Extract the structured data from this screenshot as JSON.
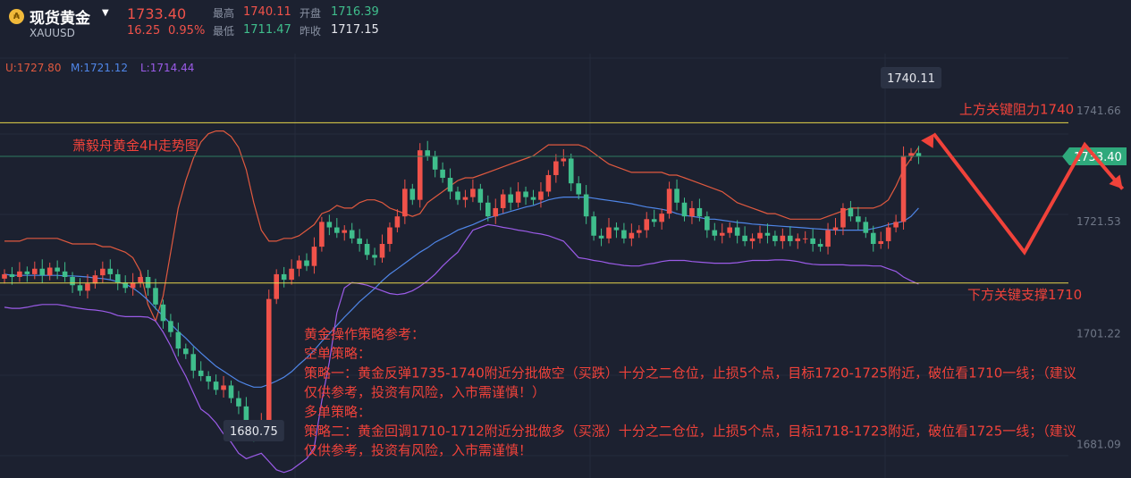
{
  "header": {
    "title": "现货黄金",
    "symbol": "XAUUSD",
    "price": "1733.40",
    "change": "16.25",
    "change_pct": "0.95%",
    "stats": {
      "high_label": "最高",
      "high": "1740.11",
      "open_label": "开盘",
      "open": "1716.39",
      "low_label": "最低",
      "low": "1711.47",
      "prev_close_label": "昨收",
      "prev_close": "1717.15"
    }
  },
  "bollinger": {
    "upper": "U:1727.80",
    "middle": "M:1721.12",
    "lower": "L:1714.44"
  },
  "colors": {
    "background": "#1c2130",
    "up": "#f0524a",
    "down": "#3fbe8c",
    "upper_band": "#e0593f",
    "middle_band": "#4f86e8",
    "lower_band": "#9b5be8",
    "level_line": "#e6d64a",
    "annotation": "#f0423a"
  },
  "chart_data": {
    "type": "candlestick",
    "title": "萧毅舟黄金4H走势图",
    "ylim": [
      1675,
      1748
    ],
    "y_ticks": [
      1741.66,
      1721.53,
      1701.22,
      1681.09
    ],
    "y_tick_labels": [
      "1741.66",
      "1721.53",
      "1701.22",
      "1681.09"
    ],
    "last_price_label": "1733.40",
    "extreme_labels": [
      {
        "text": "1740.11",
        "candle_index": 120
      },
      {
        "text": "1680.75",
        "candle_index": 33
      }
    ],
    "levels": [
      {
        "name": "上方关键阻力1740",
        "value": 1739.5
      },
      {
        "name": "下方关键支撑1710",
        "value": 1710.4
      }
    ],
    "projection_path": [
      {
        "candle_index": 123,
        "value": 1737.5
      },
      {
        "candle_index": 135,
        "value": 1716.0
      },
      {
        "candle_index": 143,
        "value": 1735.5
      },
      {
        "candle_index": 148,
        "value": 1727.5
      }
    ],
    "strategy_lines": [
      "黄金操作策略参考：",
      "空单策略：",
      "策略一：黄金反弹1735-1740附近分批做空（买跌）十分之二仓位，止损5个点，目标1720-1725附近，破位看1710一线；（建议",
      "仅供参考，投资有风险，入市需谨慎！）",
      "多单策略：",
      "策略二：黄金回调1710-1712附近分批做多（买涨）十分之二仓位，止损5个点，目标1718-1723附近，破位看1725一线；（建议",
      "仅供参考，投资有风险，入市需谨慎！"
    ],
    "close": [
      1712.0,
      1711.5,
      1712.5,
      1712.0,
      1713.0,
      1711.8,
      1713.2,
      1712.5,
      1711.5,
      1710.0,
      1709.0,
      1710.3,
      1711.8,
      1713.0,
      1712.0,
      1710.5,
      1709.5,
      1710.5,
      1711.5,
      1709.5,
      1706.5,
      1703.5,
      1701.5,
      1698.5,
      1697.5,
      1694.5,
      1693.5,
      1692.5,
      1691.0,
      1691.8,
      1689.5,
      1688.0,
      1684.0,
      1683.0,
      1685.5,
      1707.5,
      1712.0,
      1711.0,
      1713.0,
      1714.5,
      1713.5,
      1717.0,
      1721.5,
      1720.5,
      1719.5,
      1720.0,
      1718.5,
      1717.5,
      1715.5,
      1715.0,
      1717.5,
      1720.5,
      1722.5,
      1727.5,
      1725.5,
      1734.5,
      1733.5,
      1731.0,
      1729.5,
      1727.0,
      1725.5,
      1726.0,
      1727.5,
      1725.0,
      1722.5,
      1724.0,
      1726.5,
      1725.0,
      1727.0,
      1726.0,
      1725.5,
      1727.0,
      1730.0,
      1732.5,
      1733.0,
      1728.5,
      1726.5,
      1722.5,
      1719.0,
      1718.5,
      1720.5,
      1720.0,
      1718.5,
      1719.5,
      1720.0,
      1722.0,
      1721.5,
      1723.0,
      1727.5,
      1725.0,
      1722.5,
      1724.0,
      1722.5,
      1720.0,
      1719.0,
      1719.5,
      1720.5,
      1719.0,
      1718.0,
      1718.5,
      1719.5,
      1719.0,
      1718.0,
      1719.0,
      1718.0,
      1718.5,
      1718.5,
      1717.5,
      1717.0,
      1720.0,
      1720.5,
      1724.0,
      1722.5,
      1721.5,
      1719.5,
      1717.5,
      1718.0,
      1720.5,
      1721.5,
      1733.5,
      1734.0,
      1733.4
    ],
    "high_low": {
      "note": "per-candle high/low are derived as small wicks around open/close in the drawing script"
    },
    "upper_band": [
      1718.0,
      1718.0,
      1718.0,
      1718.5,
      1718.5,
      1718.5,
      1718.5,
      1718.5,
      1718.0,
      1717.5,
      1717.5,
      1717.5,
      1717.5,
      1717.0,
      1717.0,
      1716.5,
      1716.0,
      1715.0,
      1712.5,
      1706.5,
      1703.5,
      1708.0,
      1716.0,
      1724.0,
      1729.0,
      1733.0,
      1736.0,
      1737.5,
      1738.0,
      1738.0,
      1737.0,
      1735.0,
      1731.0,
      1725.0,
      1720.0,
      1718.0,
      1718.0,
      1718.5,
      1718.5,
      1719.0,
      1720.0,
      1721.0,
      1723.0,
      1723.5,
      1724.5,
      1724.0,
      1724.0,
      1725.0,
      1725.5,
      1725.5,
      1725.0,
      1724.0,
      1723.5,
      1723.0,
      1722.5,
      1723.0,
      1725.0,
      1726.0,
      1727.0,
      1728.0,
      1729.0,
      1729.5,
      1729.5,
      1730.0,
      1730.5,
      1731.0,
      1731.5,
      1732.0,
      1732.5,
      1733.0,
      1733.5,
      1734.5,
      1735.5,
      1735.5,
      1735.5,
      1735.5,
      1735.5,
      1735.0,
      1734.0,
      1733.0,
      1732.0,
      1731.5,
      1731.0,
      1730.5,
      1730.5,
      1730.5,
      1730.5,
      1730.5,
      1730.0,
      1730.0,
      1729.5,
      1729.0,
      1728.5,
      1728.0,
      1727.5,
      1727.0,
      1726.0,
      1725.0,
      1724.5,
      1724.0,
      1723.5,
      1723.0,
      1723.0,
      1722.5,
      1722.0,
      1722.0,
      1722.0,
      1722.0,
      1722.0,
      1722.5,
      1723.0,
      1723.5,
      1724.0,
      1724.0,
      1724.0,
      1724.0,
      1724.5,
      1725.5,
      1728.0,
      1731.0,
      1733.0,
      1735.0
    ],
    "middle_band": [
      1712.0,
      1711.8,
      1711.8,
      1711.8,
      1711.8,
      1711.8,
      1711.8,
      1711.8,
      1711.7,
      1711.7,
      1711.6,
      1711.5,
      1711.3,
      1711.2,
      1711.0,
      1710.6,
      1710.2,
      1709.5,
      1708.5,
      1707.3,
      1705.8,
      1704.4,
      1703.0,
      1701.6,
      1700.4,
      1699.0,
      1697.7,
      1696.5,
      1695.3,
      1694.4,
      1693.5,
      1692.6,
      1692.0,
      1691.5,
      1691.5,
      1692.0,
      1692.6,
      1693.3,
      1694.3,
      1695.6,
      1696.8,
      1698.2,
      1699.8,
      1701.2,
      1702.7,
      1704.2,
      1705.6,
      1707.0,
      1708.2,
      1709.4,
      1710.8,
      1712.0,
      1713.0,
      1714.0,
      1715.0,
      1716.0,
      1716.8,
      1717.8,
      1718.5,
      1719.2,
      1720.0,
      1720.5,
      1721.0,
      1721.6,
      1722.2,
      1722.6,
      1723.0,
      1723.4,
      1723.8,
      1724.2,
      1724.5,
      1725.0,
      1725.5,
      1725.8,
      1726.0,
      1726.0,
      1726.0,
      1726.0,
      1725.8,
      1725.6,
      1725.4,
      1725.2,
      1725.0,
      1724.8,
      1724.5,
      1724.2,
      1724.0,
      1723.8,
      1723.5,
      1723.0,
      1722.7,
      1722.5,
      1722.3,
      1722.0,
      1722.0,
      1721.8,
      1721.6,
      1721.4,
      1721.3,
      1721.1,
      1721.0,
      1720.9,
      1720.8,
      1720.7,
      1720.6,
      1720.5,
      1720.4,
      1720.3,
      1720.2,
      1720.1,
      1720.0,
      1720.0,
      1720.0,
      1720.0,
      1720.0,
      1720.3,
      1720.6,
      1721.0,
      1721.3,
      1721.6,
      1722.5,
      1724.0
    ],
    "lower_band": [
      1706.0,
      1705.8,
      1705.8,
      1706.0,
      1706.3,
      1706.5,
      1706.5,
      1706.5,
      1706.3,
      1706.0,
      1705.8,
      1705.6,
      1705.5,
      1705.3,
      1705.0,
      1704.5,
      1704.3,
      1704.3,
      1704.3,
      1704.2,
      1703.5,
      1701.5,
      1699.0,
      1696.0,
      1693.5,
      1690.5,
      1687.5,
      1686.5,
      1685.0,
      1683.0,
      1681.5,
      1679.5,
      1678.5,
      1679.0,
      1679.5,
      1678.0,
      1676.5,
      1676.0,
      1676.5,
      1677.5,
      1678.5,
      1680.5,
      1689.0,
      1696.0,
      1705.0,
      1709.5,
      1710.5,
      1710.3,
      1710.0,
      1709.5,
      1709.0,
      1708.5,
      1708.3,
      1708.5,
      1709.0,
      1709.8,
      1710.8,
      1712.0,
      1713.5,
      1714.8,
      1716.0,
      1718.0,
      1720.0,
      1720.5,
      1721.0,
      1720.8,
      1720.5,
      1720.3,
      1720.0,
      1719.8,
      1719.5,
      1719.3,
      1719.0,
      1718.5,
      1718.0,
      1716.5,
      1715.0,
      1714.8,
      1714.5,
      1714.3,
      1714.0,
      1713.8,
      1713.6,
      1713.5,
      1713.5,
      1713.8,
      1714.0,
      1714.3,
      1714.5,
      1714.5,
      1714.5,
      1714.3,
      1714.2,
      1714.1,
      1714.0,
      1714.0,
      1714.0,
      1714.1,
      1714.3,
      1714.5,
      1714.5,
      1714.5,
      1714.6,
      1714.6,
      1714.5,
      1714.3,
      1714.0,
      1713.8,
      1713.7,
      1713.7,
      1713.7,
      1713.7,
      1713.6,
      1713.6,
      1713.6,
      1713.5,
      1713.5,
      1713.0,
      1712.5,
      1711.5,
      1710.8,
      1710.2
    ]
  }
}
